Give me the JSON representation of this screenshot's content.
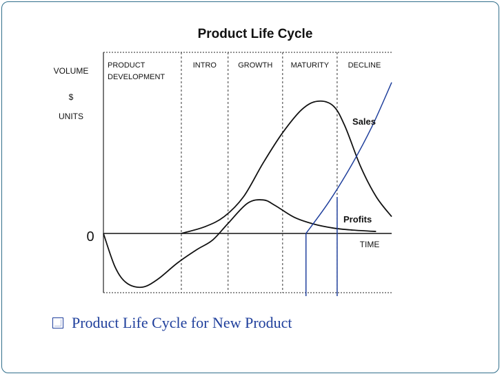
{
  "slide": {
    "bullet_text": "Product Life Cycle for New Product",
    "accent_color": "#1f3f9c",
    "border_color": "#2f6d8a"
  },
  "chart_data": {
    "type": "line",
    "title": "Product Life Cycle",
    "ylabel_lines": [
      "VOLUME",
      "$",
      "UNITS"
    ],
    "xlabel": "TIME",
    "zero_label": "0",
    "stages": [
      {
        "name": "PRODUCT DEVELOPMENT",
        "label_lines": [
          "PRODUCT",
          "DEVELOPMENT"
        ],
        "start": 0,
        "end": 1.0
      },
      {
        "name": "INTRO",
        "label_lines": [
          "INTRO"
        ],
        "start": 1.0,
        "end": 1.6
      },
      {
        "name": "GROWTH",
        "label_lines": [
          "GROWTH"
        ],
        "start": 1.6,
        "end": 2.3
      },
      {
        "name": "MATURITY",
        "label_lines": [
          "MATURITY"
        ],
        "start": 2.3,
        "end": 3.0
      },
      {
        "name": "DECLINE",
        "label_lines": [
          "DECLINE"
        ],
        "start": 3.0,
        "end": 3.7
      }
    ],
    "xlim": [
      0,
      3.7
    ],
    "ylim": [
      -1.0,
      2.6
    ],
    "series": [
      {
        "name": "Sales",
        "x": [
          1.0,
          1.3,
          1.55,
          1.8,
          2.05,
          2.3,
          2.55,
          2.75,
          2.95,
          3.1,
          3.3,
          3.5,
          3.7
        ],
        "y": [
          0.0,
          0.1,
          0.25,
          0.55,
          1.05,
          1.5,
          1.85,
          1.97,
          1.9,
          1.6,
          1.0,
          0.55,
          0.25
        ]
      },
      {
        "name": "Profits",
        "x": [
          0.0,
          0.15,
          0.3,
          0.5,
          0.7,
          0.95,
          1.2,
          1.4,
          1.6,
          1.85,
          2.05,
          2.2,
          2.45,
          2.7,
          2.95,
          3.2,
          3.5
        ],
        "y": [
          0.0,
          -0.5,
          -0.74,
          -0.8,
          -0.68,
          -0.44,
          -0.24,
          -0.1,
          0.15,
          0.45,
          0.5,
          0.42,
          0.24,
          0.14,
          0.08,
          0.05,
          0.03
        ]
      }
    ],
    "series_labels": [
      {
        "name": "Sales",
        "text": "Sales"
      },
      {
        "name": "Profits",
        "text": "Profits"
      }
    ],
    "annotations": {
      "vertical_lines_x": [
        2.6,
        3.0
      ],
      "curve_x": [
        2.6,
        2.9,
        3.2,
        3.45,
        3.7
      ],
      "curve_y": [
        0.0,
        0.48,
        1.05,
        1.6,
        2.25
      ]
    }
  }
}
